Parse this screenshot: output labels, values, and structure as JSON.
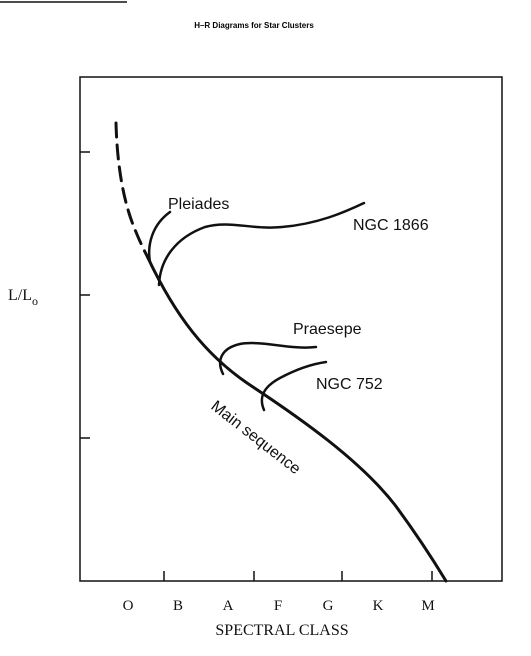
{
  "chart_data": {
    "type": "line",
    "title": "H–R Diagrams for Star Clusters",
    "xlabel": "SPECTRAL CLASS",
    "ylabel": "L/L",
    "ylabel_subscript": "o",
    "x_categories": [
      "O",
      "B",
      "A",
      "F",
      "G",
      "K",
      "M"
    ],
    "y_ticks": 3,
    "labels": {
      "pleiades": "Pleiades",
      "ngc1866": "NGC 1866",
      "praesepe": "Praesepe",
      "ngc752": "NGC 752",
      "main_sequence": "Main sequence"
    },
    "grid": false,
    "legend": "none"
  }
}
